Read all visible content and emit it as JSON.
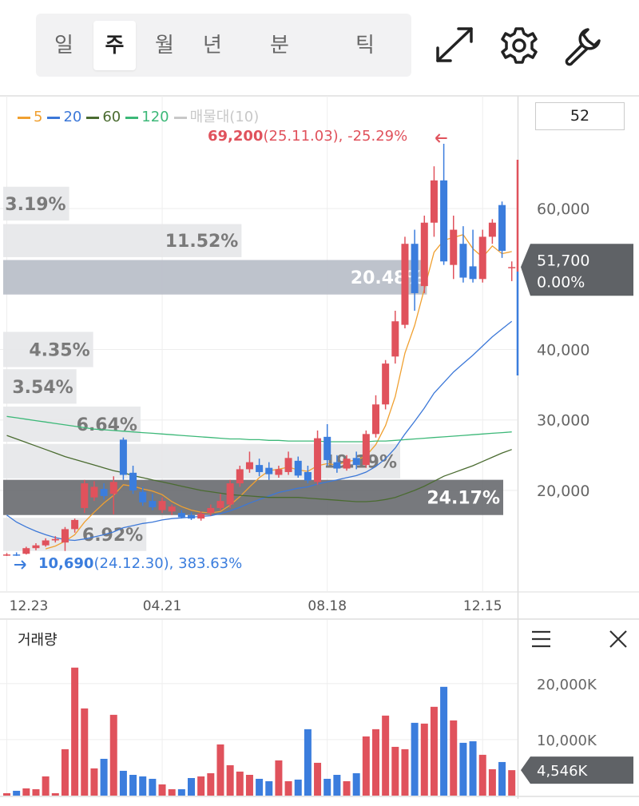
{
  "tabs": [
    "일",
    "주",
    "월",
    "년",
    "분",
    "틱"
  ],
  "selected_tab": "주",
  "period_count": 52,
  "chart_data": [
    {
      "type": "candlestick",
      "xlim": [
        -0.7,
        52.6
      ],
      "xticks": [
        {
          "value": 0,
          "label": "12.23"
        },
        {
          "value": 16,
          "label": "04.21"
        },
        {
          "value": 33,
          "label": "08.18"
        },
        {
          "value": 49,
          "label": "12.15"
        }
      ],
      "ylim": [
        5700,
        76000
      ],
      "yticks": [
        {
          "value": 20000,
          "label": "20,000"
        },
        {
          "value": 30000,
          "label": "30,000"
        },
        {
          "value": 40000,
          "label": "40,000"
        },
        {
          "value": 60000,
          "label": "60,000"
        }
      ],
      "grid": true,
      "up_color": "#e0525c",
      "down_color": "#3b7ddd",
      "open": [
        10800,
        10900,
        11000,
        11800,
        12200,
        12900,
        12600,
        14500,
        17500,
        19000,
        20200,
        19500,
        27200,
        22500,
        19800,
        18500,
        17200,
        17000,
        16800,
        16500,
        16000,
        16800,
        17500,
        18000,
        21000,
        23000,
        23600,
        23200,
        22200,
        22600,
        24200,
        22600,
        21200,
        27600,
        24000,
        23100,
        24600,
        23600,
        28000,
        32200,
        39000,
        43500,
        55000,
        49000,
        58000,
        64000,
        52000,
        55000,
        51800,
        50000,
        56000,
        60500,
        51700
      ],
      "high": [
        11100,
        11200,
        12000,
        12500,
        13200,
        13500,
        14800,
        16000,
        21500,
        21300,
        21000,
        22000,
        27500,
        23500,
        20500,
        19500,
        19000,
        18000,
        17200,
        16900,
        17000,
        18000,
        19500,
        21500,
        23500,
        25500,
        24500,
        24000,
        23500,
        25500,
        24800,
        23500,
        28500,
        29400,
        25000,
        25000,
        25500,
        28500,
        33500,
        38500,
        45500,
        56000,
        57000,
        59000,
        66000,
        69200,
        59000,
        57500,
        57000,
        57000,
        58500,
        61000,
        52500
      ],
      "low": [
        10690,
        10700,
        10900,
        11500,
        12000,
        12600,
        11400,
        14000,
        16800,
        18500,
        18700,
        16600,
        21500,
        19500,
        17800,
        17200,
        16800,
        16500,
        16000,
        15800,
        15700,
        16400,
        17200,
        17500,
        20500,
        22500,
        22000,
        21500,
        21800,
        22200,
        21800,
        21000,
        20800,
        23500,
        22500,
        22800,
        23000,
        23200,
        27500,
        31500,
        38000,
        43000,
        45500,
        48000,
        56000,
        52000,
        50000,
        49500,
        49500,
        49500,
        55000,
        53000,
        49700
      ],
      "close": [
        10900,
        10800,
        11800,
        12200,
        12900,
        13100,
        14500,
        15800,
        21000,
        20500,
        19200,
        21200,
        22200,
        20000,
        18300,
        17600,
        18500,
        17700,
        16200,
        16000,
        16700,
        17500,
        18500,
        21000,
        23000,
        24000,
        22600,
        22300,
        23000,
        24600,
        22100,
        21400,
        27400,
        24300,
        23100,
        24500,
        23600,
        28000,
        32200,
        38000,
        44000,
        55000,
        48000,
        58000,
        64000,
        52500,
        57000,
        50200,
        50000,
        56000,
        58000,
        54000,
        51700
      ],
      "series": [
        {
          "name": "5",
          "color": "#f0a030",
          "values": [
            null,
            null,
            null,
            null,
            11700,
            12100,
            12800,
            13700,
            15500,
            16900,
            18200,
            19300,
            20800,
            20600,
            20200,
            19900,
            19400,
            18400,
            17700,
            17200,
            16900,
            16800,
            17000,
            17900,
            19100,
            20500,
            21800,
            22800,
            23000,
            23300,
            22900,
            22700,
            23500,
            23800,
            23600,
            24100,
            24300,
            24900,
            26500,
            29200,
            33300,
            39500,
            43400,
            48600,
            53800,
            55500,
            55900,
            56300,
            54300,
            53100,
            54700,
            53600,
            53900
          ]
        },
        {
          "name": "20",
          "color": "#3c78d8",
          "values": [
            16500,
            15500,
            14800,
            14200,
            13700,
            13300,
            13000,
            12900,
            13100,
            13400,
            13700,
            14100,
            14700,
            15000,
            15300,
            15500,
            15800,
            16000,
            16100,
            16200,
            16300,
            16400,
            16700,
            17100,
            17600,
            18200,
            18700,
            19200,
            19700,
            20000,
            20300,
            20500,
            20900,
            21200,
            21500,
            21800,
            22100,
            22600,
            23400,
            24500,
            26000,
            28000,
            29800,
            31700,
            33800,
            35300,
            36800,
            38000,
            39200,
            40500,
            41800,
            42900,
            44000
          ]
        },
        {
          "name": "60",
          "color": "#4a6b30",
          "values": [
            27800,
            27300,
            26800,
            26300,
            25800,
            25300,
            24800,
            24400,
            24000,
            23600,
            23200,
            22800,
            22500,
            22100,
            21800,
            21500,
            21200,
            20900,
            20600,
            20300,
            20000,
            19800,
            19600,
            19400,
            19300,
            19200,
            19100,
            19000,
            19000,
            19000,
            19000,
            18900,
            18800,
            18700,
            18600,
            18500,
            18400,
            18400,
            18500,
            18700,
            19000,
            19500,
            20000,
            20600,
            21300,
            22000,
            22500,
            23000,
            23500,
            24100,
            24700,
            25300,
            25800
          ]
        },
        {
          "name": "120",
          "color": "#3cb878",
          "values": [
            30500,
            30300,
            30100,
            29900,
            29700,
            29500,
            29300,
            29100,
            28900,
            28700,
            28600,
            28500,
            28400,
            28300,
            28200,
            28100,
            28000,
            27900,
            27800,
            27700,
            27600,
            27500,
            27400,
            27300,
            27300,
            27200,
            27200,
            27100,
            27100,
            27000,
            27000,
            27000,
            27000,
            26900,
            26900,
            26900,
            26900,
            26900,
            27000,
            27000,
            27100,
            27200,
            27300,
            27400,
            27500,
            27600,
            27700,
            27800,
            27900,
            28000,
            28100,
            28200,
            28300
          ]
        }
      ],
      "volume_profile": {
        "name": "매물대(10)",
        "color": "#c8c8c8",
        "bands": [
          {
            "low": 58300,
            "high": 63100,
            "percent": 3.19,
            "label": "3.19%",
            "color": "#e6e7e9"
          },
          {
            "low": 53100,
            "high": 57800,
            "percent": 11.52,
            "label": "11.52%",
            "color": "#e6e7e9"
          },
          {
            "low": 47800,
            "high": 52700,
            "percent": 20.48,
            "label": "20.48%",
            "color": "#b8bec8"
          },
          {
            "low": 37500,
            "high": 42500,
            "percent": 4.35,
            "label": "4.35%",
            "color": "#e6e7e9"
          },
          {
            "low": 32300,
            "high": 37200,
            "percent": 3.54,
            "label": "3.54%",
            "color": "#e6e7e9"
          },
          {
            "low": 26900,
            "high": 31900,
            "percent": 6.64,
            "label": "6.64%",
            "color": "#e6e7e9"
          },
          {
            "low": 21700,
            "high": 26600,
            "percent": 19.19,
            "label": "19.19%",
            "color": "#e6e7e9"
          },
          {
            "low": 16500,
            "high": 21500,
            "percent": 24.17,
            "label": "24.17%",
            "color": "#6b6e72"
          },
          {
            "low": 11400,
            "high": 16100,
            "percent": 6.92,
            "label": "6.92%",
            "color": "#e6e7e9"
          }
        ]
      },
      "high_note": {
        "price": "69,200",
        "detail": "(25.11.03), -25.29%"
      },
      "low_note": {
        "price": "10,690",
        "detail": "(24.12.30), 383.63%"
      },
      "last": {
        "value": 51700,
        "label": "51,700",
        "change": "0.00%"
      }
    },
    {
      "type": "bar",
      "title": "거래량",
      "xlim": [
        -0.7,
        52.6
      ],
      "ylim": [
        0,
        31100
      ],
      "yticks": [
        {
          "value": 10000,
          "label": "10,000K"
        },
        {
          "value": 20000,
          "label": "20,000K"
        }
      ],
      "values": [
        430,
        860,
        1290,
        1140,
        3430,
        430,
        8290,
        22860,
        15570,
        4860,
        6570,
        14430,
        4430,
        3710,
        3430,
        3000,
        2000,
        1140,
        1140,
        3140,
        3430,
        4000,
        9140,
        5430,
        4290,
        3710,
        3000,
        2570,
        6290,
        2570,
        2860,
        11860,
        5860,
        3000,
        3710,
        2570,
        4000,
        10570,
        11860,
        14290,
        8710,
        8290,
        13000,
        12860,
        15860,
        19430,
        13430,
        9430,
        9710,
        7290,
        4710,
        6000,
        4546
      ],
      "last": {
        "value": 4546,
        "label": "4,546K"
      }
    }
  ]
}
